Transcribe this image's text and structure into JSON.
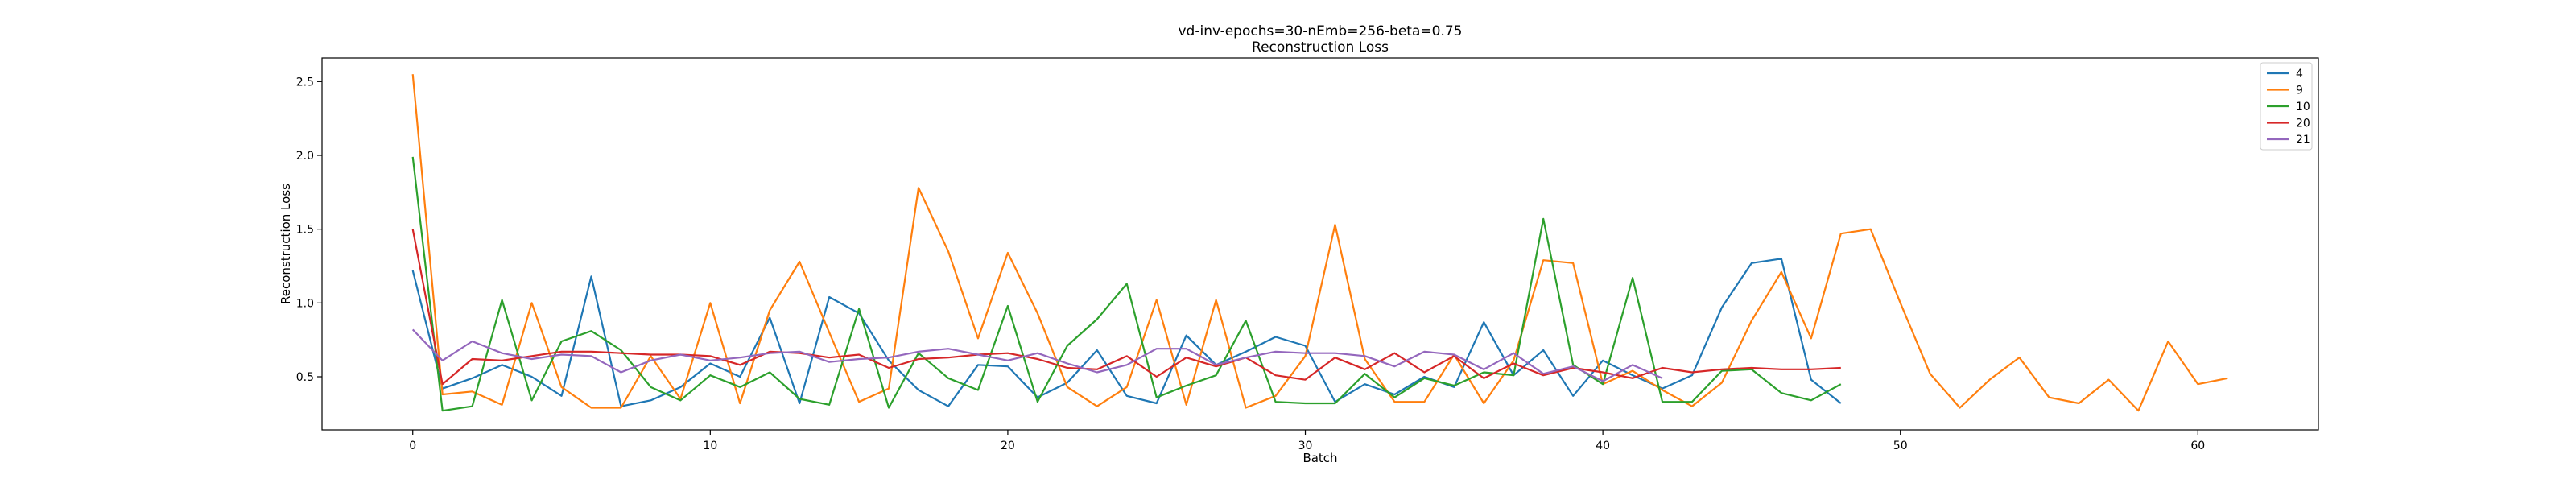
{
  "chart_data": {
    "type": "line",
    "title": "vd-inv-epochs=30-nEmb=256-beta=0.75",
    "subtitle": "Reconstruction Loss",
    "xlabel": "Batch",
    "ylabel": "Reconstruction Loss",
    "xlim": [
      -3.05,
      64.05
    ],
    "ylim": [
      0.14,
      2.66
    ],
    "xticks": [
      0,
      10,
      20,
      30,
      40,
      50,
      60
    ],
    "yticks": [
      0.5,
      1.0,
      1.5,
      2.0,
      2.5
    ],
    "xtick_labels": [
      "0",
      "10",
      "20",
      "30",
      "40",
      "50",
      "60"
    ],
    "ytick_labels": [
      "0.5",
      "1.0",
      "1.5",
      "2.0",
      "2.5"
    ],
    "grid": false,
    "legend_position": "top-right",
    "series": [
      {
        "name": "4",
        "color": "#1f77b4",
        "values": [
          1.22,
          0.42,
          0.49,
          0.58,
          0.5,
          0.37,
          1.18,
          0.3,
          0.34,
          0.43,
          0.59,
          0.5,
          0.9,
          0.32,
          1.04,
          0.93,
          0.61,
          0.41,
          0.3,
          0.58,
          0.57,
          0.36,
          0.46,
          0.68,
          0.37,
          0.32,
          0.78,
          0.58,
          0.67,
          0.77,
          0.71,
          0.33,
          0.45,
          0.38,
          0.5,
          0.43,
          0.87,
          0.51,
          0.68,
          0.37,
          0.61,
          0.51,
          0.42,
          0.51,
          0.97,
          1.27,
          1.3,
          0.48,
          0.32
        ]
      },
      {
        "name": "9",
        "color": "#ff7f0e",
        "values": [
          2.55,
          0.38,
          0.4,
          0.31,
          1.0,
          0.43,
          0.29,
          0.29,
          0.64,
          0.35,
          1.0,
          0.32,
          0.95,
          1.28,
          0.8,
          0.33,
          0.42,
          1.78,
          1.35,
          0.76,
          1.34,
          0.93,
          0.43,
          0.3,
          0.43,
          1.02,
          0.31,
          1.02,
          0.29,
          0.37,
          0.64,
          1.53,
          0.62,
          0.33,
          0.33,
          0.65,
          0.32,
          0.61,
          1.29,
          1.27,
          0.45,
          0.54,
          0.41,
          0.3,
          0.46,
          0.88,
          1.21,
          0.76,
          1.47,
          1.5,
          1.0,
          0.52,
          0.29,
          0.48,
          0.63,
          0.36,
          0.32,
          0.48,
          0.27,
          0.74,
          0.45,
          0.49
        ]
      },
      {
        "name": "10",
        "color": "#2ca02c",
        "values": [
          1.99,
          0.27,
          0.3,
          1.02,
          0.34,
          0.74,
          0.81,
          0.68,
          0.43,
          0.34,
          0.51,
          0.43,
          0.53,
          0.35,
          0.31,
          0.96,
          0.29,
          0.66,
          0.49,
          0.41,
          0.98,
          0.33,
          0.71,
          0.89,
          1.13,
          0.36,
          0.44,
          0.51,
          0.88,
          0.33,
          0.32,
          0.32,
          0.52,
          0.36,
          0.49,
          0.44,
          0.53,
          0.51,
          1.57,
          0.58,
          0.45,
          1.17,
          0.33,
          0.33,
          0.54,
          0.55,
          0.39,
          0.34,
          0.45
        ]
      },
      {
        "name": "20",
        "color": "#d62728",
        "values": [
          1.5,
          0.45,
          0.62,
          0.61,
          0.64,
          0.67,
          0.67,
          0.66,
          0.65,
          0.65,
          0.64,
          0.58,
          0.67,
          0.66,
          0.63,
          0.65,
          0.56,
          0.62,
          0.63,
          0.65,
          0.66,
          0.62,
          0.56,
          0.55,
          0.64,
          0.5,
          0.63,
          0.57,
          0.63,
          0.51,
          0.48,
          0.63,
          0.55,
          0.66,
          0.53,
          0.64,
          0.49,
          0.59,
          0.51,
          0.56,
          0.53,
          0.49,
          0.56,
          0.53,
          0.55,
          0.56,
          0.55,
          0.55,
          0.56
        ]
      },
      {
        "name": "21",
        "color": "#9467bd",
        "values": [
          0.82,
          0.61,
          0.74,
          0.66,
          0.62,
          0.65,
          0.64,
          0.53,
          0.61,
          0.65,
          0.61,
          0.63,
          0.66,
          0.67,
          0.6,
          0.62,
          0.63,
          0.67,
          0.69,
          0.65,
          0.61,
          0.66,
          0.59,
          0.53,
          0.58,
          0.69,
          0.69,
          0.58,
          0.63,
          0.67,
          0.66,
          0.66,
          0.64,
          0.57,
          0.67,
          0.65,
          0.55,
          0.66,
          0.52,
          0.57,
          0.47,
          0.58,
          0.49
        ]
      }
    ]
  }
}
